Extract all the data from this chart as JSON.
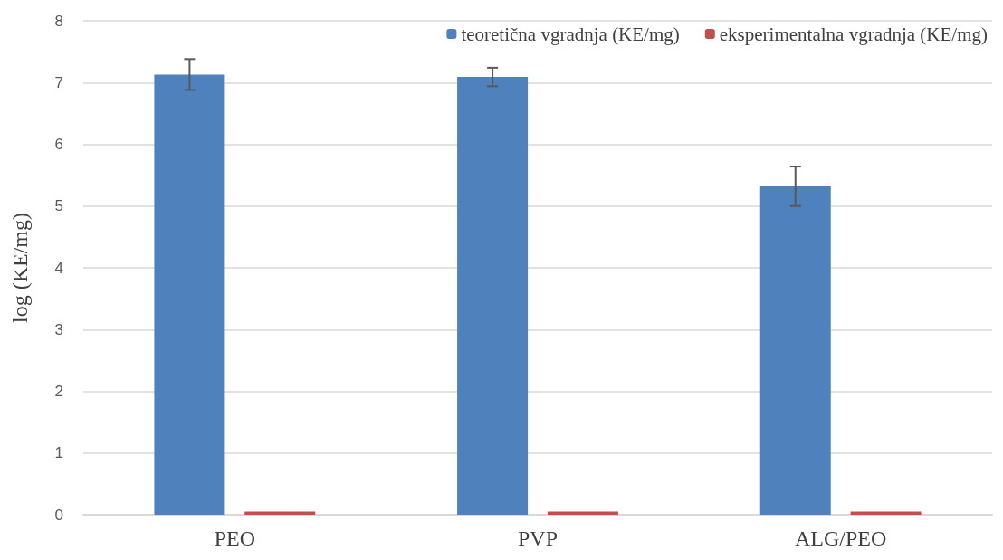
{
  "chart_data": {
    "type": "bar",
    "ylabel": "log (KE/mg)",
    "categories": [
      "PEO",
      "PVP",
      "ALG/PEO"
    ],
    "series": [
      {
        "name": "teoretična vgradnja (KE/mg)",
        "color": "#4f81bd",
        "values": [
          7.13,
          7.09,
          5.32
        ],
        "errors": [
          0.25,
          0.15,
          0.32
        ]
      },
      {
        "name": "eksperimentalna vgradnja (KE/mg)",
        "color": "#c0504d",
        "values": [
          0.05,
          0.05,
          0.05
        ]
      }
    ],
    "ylim": [
      0,
      8
    ],
    "yticks": [
      0,
      1,
      2,
      3,
      4,
      5,
      6,
      7,
      8
    ],
    "grid": "y",
    "legend": "top right"
  }
}
